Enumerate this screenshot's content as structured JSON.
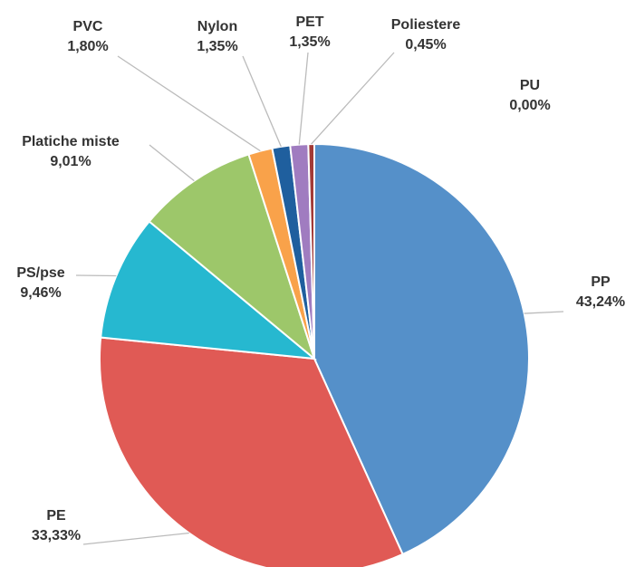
{
  "chart_data": {
    "type": "pie",
    "categories": [
      "PP",
      "PE",
      "PS/pse",
      "Platiche miste",
      "PVC",
      "Nylon",
      "PET",
      "Poliestere",
      "PU"
    ],
    "values": [
      43.24,
      33.33,
      9.46,
      9.01,
      1.8,
      1.35,
      1.35,
      0.45,
      0.0
    ],
    "value_labels": [
      "43,24%",
      "33,33%",
      "9,46%",
      "9,01%",
      "1,80%",
      "1,35%",
      "1,35%",
      "0,45%",
      "0,00%"
    ],
    "colors": [
      "#5590c9",
      "#e05a55",
      "#26b8d0",
      "#9dc76a",
      "#f9a24a",
      "#1f5f9e",
      "#a07cc0",
      "#a23a36",
      "#7f7f7f"
    ]
  }
}
